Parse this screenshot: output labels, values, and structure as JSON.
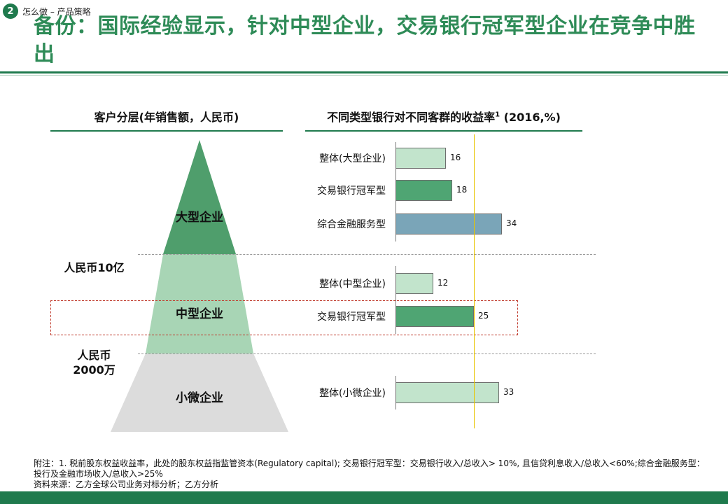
{
  "header": {
    "badge": "2",
    "breadcrumb": "怎么做 – 产品策略",
    "title": "备份：国际经验显示，针对中型企业，交易银行冠军型企业在竞争中胜出"
  },
  "left_panel": {
    "heading": "客户分层(年销售额，人民币)",
    "tiers": [
      {
        "label": "大型企业",
        "color": "#4f9e6c"
      },
      {
        "label": "中型企业",
        "color": "#a8d5b5"
      },
      {
        "label": "小微企业",
        "color": "#dcdcdc"
      }
    ],
    "thresholds": [
      {
        "label": "人民币10亿"
      },
      {
        "label_line1": "人民币",
        "label_line2": "2000万"
      }
    ]
  },
  "right_panel": {
    "heading": "不同类型银行对不同客群的收益率",
    "heading_sup": "1",
    "heading_suffix": " (2016,%)"
  },
  "chart_data": {
    "type": "bar",
    "orientation": "horizontal",
    "title": "不同类型银行对不同客群的收益率¹ (2016,%)",
    "reference_line_value": 25,
    "groups": [
      {
        "segment": "大型企业",
        "bars": [
          {
            "label": "整体(大型企业)",
            "value": 16,
            "color": "#c2e4cc"
          },
          {
            "label": "交易银行冠军型",
            "value": 18,
            "color": "#4fa573"
          },
          {
            "label": "综合金融服务型",
            "value": 34,
            "color": "#7aa5b8"
          }
        ]
      },
      {
        "segment": "中型企业",
        "bars": [
          {
            "label": "整体(中型企业)",
            "value": 12,
            "color": "#c2e4cc"
          },
          {
            "label": "交易银行冠军型",
            "value": 25,
            "color": "#4fa573",
            "highlighted": true
          }
        ]
      },
      {
        "segment": "小微企业",
        "bars": [
          {
            "label": "整体(小微企业)",
            "value": 33,
            "color": "#c2e4cc"
          }
        ]
      }
    ]
  },
  "footer": {
    "note": "附注：1. 税前股东权益收益率，此处的股东权益指监管资本(Regulatory capital); 交易银行冠军型：交易银行收入/总收入> 10%, 且信贷利息收入/总收入<60%;综合金融服务型：投行及金融市场收入/总收入>25%",
    "source": "资料来源：乙方全球公司业务对标分析；乙方分析"
  },
  "colors": {
    "brand_green": "#1f7a4d",
    "title_green": "#2e8b57",
    "reference_line": "#e8c400",
    "highlight_border": "#c0392b"
  }
}
